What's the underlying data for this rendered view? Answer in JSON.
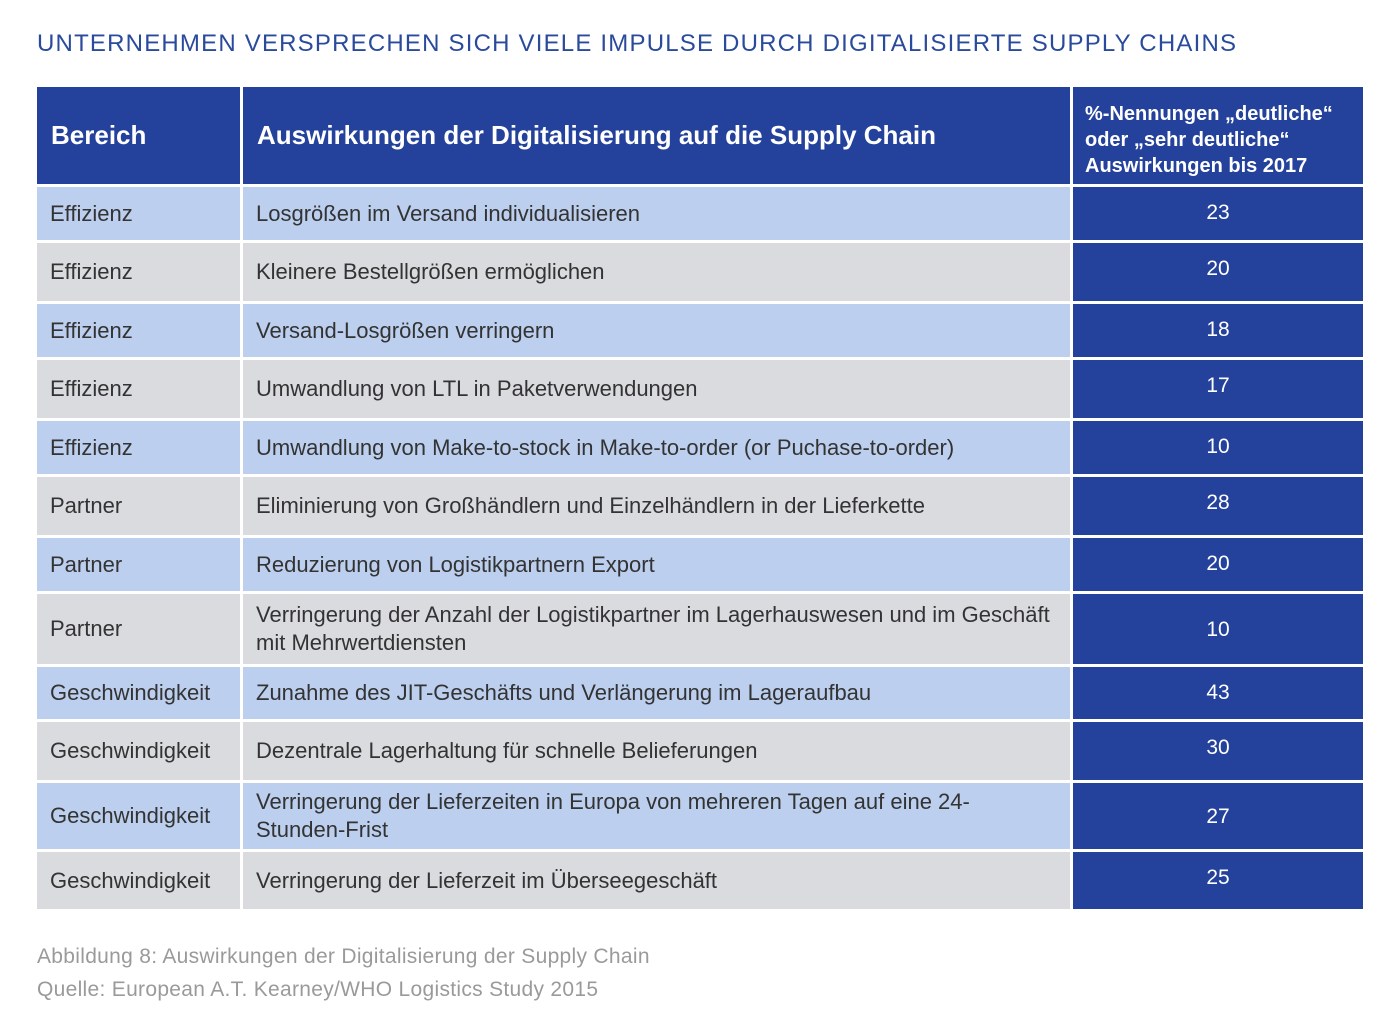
{
  "title": "UNTERNEHMEN VERSPRECHEN SICH VIELE IMPULSE DURCH DIGITALISIERTE SUPPLY CHAINS",
  "table": {
    "headers": {
      "area": "Bereich",
      "impact": "Auswirkungen der Digitalisierung auf die Supply Chain",
      "percent": "%-Nennungen „deutliche“ oder „sehr deutliche“ Auswirkungen bis 2017"
    },
    "rows": [
      {
        "area": "Effizienz",
        "impact": "Losgrößen im Versand individualisieren",
        "value": "23"
      },
      {
        "area": "Effizienz",
        "impact": "Kleinere Bestellgrößen ermöglichen",
        "value": "20"
      },
      {
        "area": "Effizienz",
        "impact": "Versand-Losgrößen verringern",
        "value": "18"
      },
      {
        "area": "Effizienz",
        "impact": "Umwandlung von LTL in Paketverwendungen",
        "value": "17"
      },
      {
        "area": "Effizienz",
        "impact": "Umwandlung von Make-to-stock in Make-to-order (or Puchase-to-order)",
        "value": "10"
      },
      {
        "area": "Partner",
        "impact": "Eliminierung von Großhändlern und Einzelhändlern in der Lieferkette",
        "value": "28"
      },
      {
        "area": "Partner",
        "impact": "Reduzierung von Logistikpartnern Export",
        "value": "20"
      },
      {
        "area": "Partner",
        "impact": "Verringerung der Anzahl der Logistikpartner im Lagerhauswesen und im Geschäft mit Mehrwertdiensten",
        "value": "10"
      },
      {
        "area": "Geschwindigkeit",
        "impact": "Zunahme des JIT-Geschäfts und Verlängerung im Lageraufbau",
        "value": "43"
      },
      {
        "area": "Geschwindigkeit",
        "impact": "Dezentrale Lagerhaltung für schnelle Belieferungen",
        "value": "30"
      },
      {
        "area": "Geschwindigkeit",
        "impact": "Verringerung der Lieferzeiten in Europa von mehreren Tagen auf eine 24-Stunden-Frist",
        "value": "27"
      },
      {
        "area": "Geschwindigkeit",
        "impact": "Verringerung der Lieferzeit im Überseegeschäft",
        "value": "25"
      }
    ]
  },
  "caption": {
    "figure": "Abbildung 8: Auswirkungen der Digitalisierung der Supply Chain",
    "source": "Quelle: European A.T. Kearney/WHO Logistics Study 2015"
  },
  "colors": {
    "title": "#2a4a9c",
    "header_bg": "#24429b",
    "row_blue": "#bccfee",
    "row_grey": "#d9dbdf",
    "caption": "#9a9a9a"
  }
}
